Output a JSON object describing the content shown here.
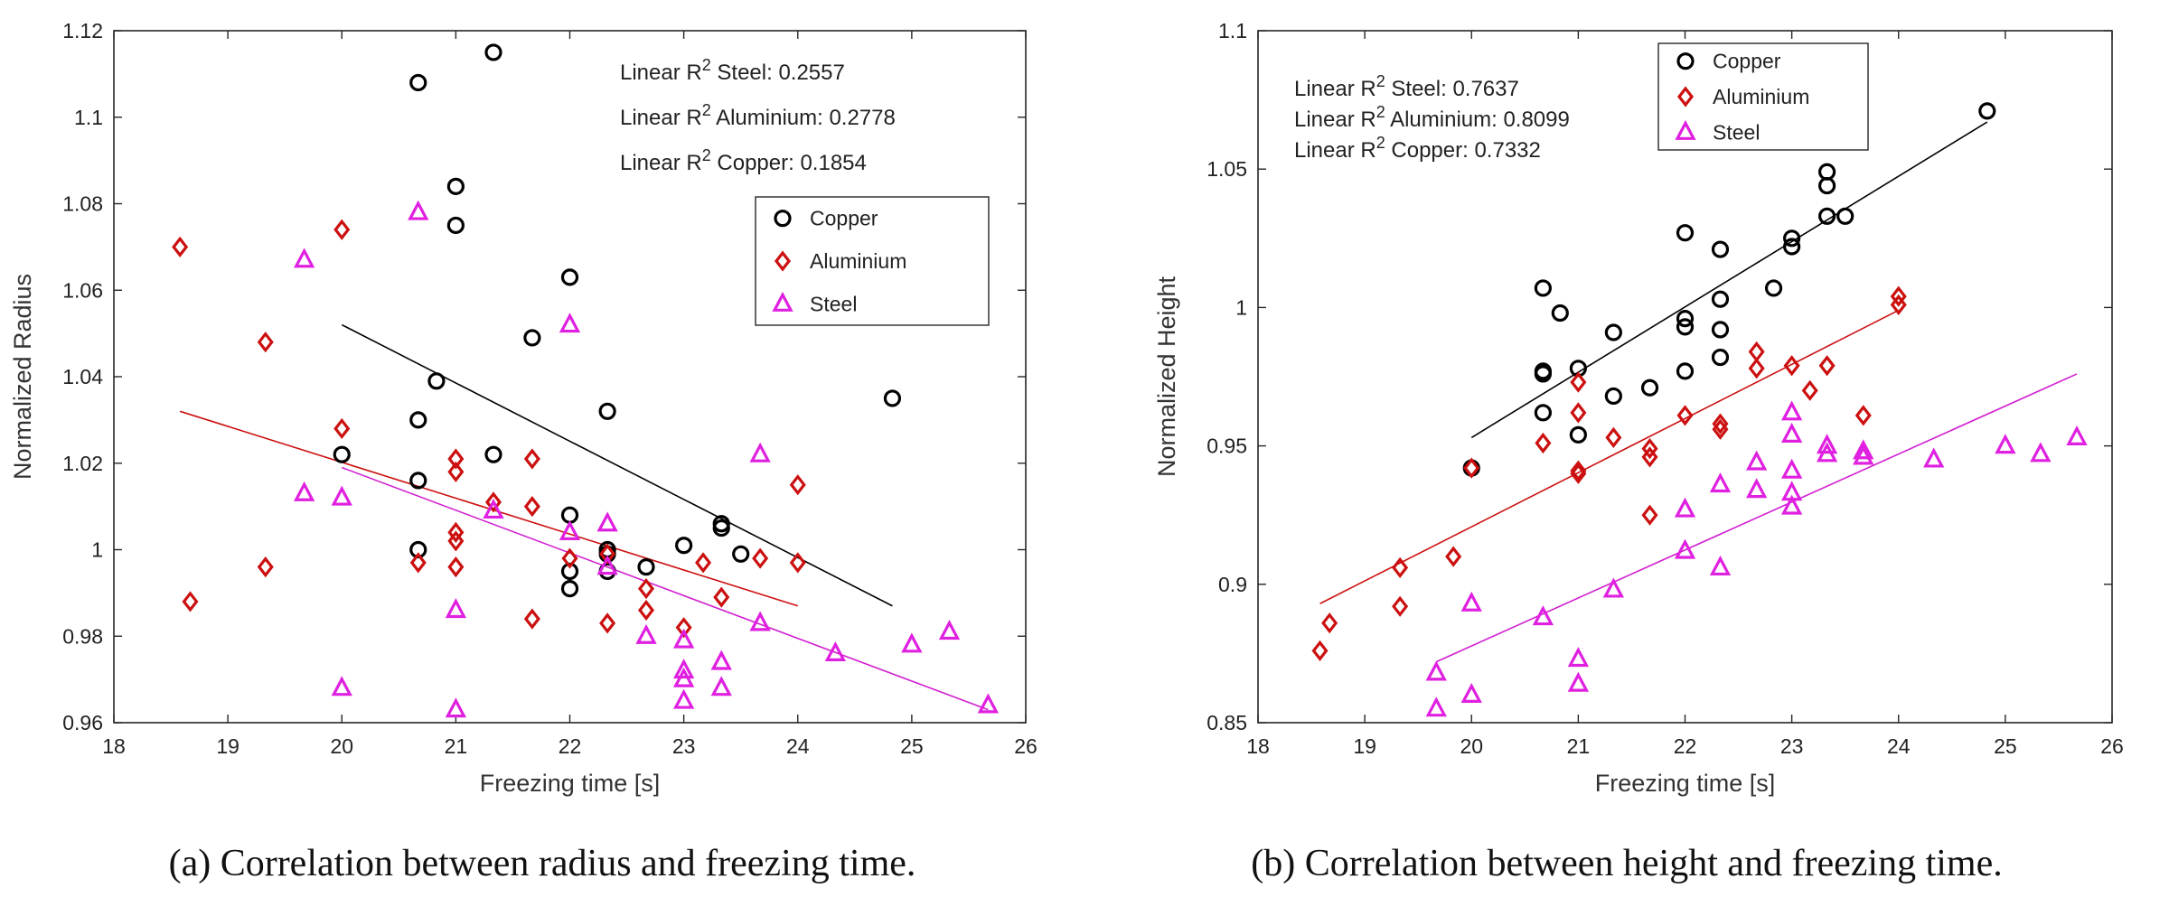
{
  "colors": {
    "Copper": "#000000",
    "Aluminium": "#cc1010",
    "Steel": "#e020e0",
    "fitCopper": "#000000",
    "fitAluminium": "#cc1010",
    "fitSteel": "#d020d0"
  },
  "chart_data": [
    {
      "id": "a",
      "type": "scatter",
      "caption": "(a) Correlation between radius and freezing time.",
      "xlabel": "Freezing time [s]",
      "ylabel": "Normalized Radius",
      "xlim": [
        18,
        26
      ],
      "ylim": [
        0.96,
        1.12
      ],
      "xticks": [
        "18",
        "19",
        "20",
        "21",
        "22",
        "23",
        "24",
        "25",
        "26"
      ],
      "yticks": [
        "0.96",
        "0.98",
        "1",
        "1.02",
        "1.04",
        "1.06",
        "1.08",
        "1.1",
        "1.12"
      ],
      "legend_position": "top-right",
      "annotations": [
        {
          "prefix": "Linear R",
          "sup": "2",
          "text": " Steel: 0.2557"
        },
        {
          "prefix": "Linear R",
          "sup": "2",
          "text": " Aluminium: 0.2778"
        },
        {
          "prefix": "Linear R",
          "sup": "2",
          "text": " Copper: 0.1854"
        }
      ],
      "series": [
        {
          "name": "Copper",
          "marker": "circle",
          "points": [
            [
              20,
              1.022
            ],
            [
              20.67,
              1.108
            ],
            [
              20.67,
              1.03
            ],
            [
              20.67,
              1.016
            ],
            [
              20.67,
              1.0
            ],
            [
              20.83,
              1.039
            ],
            [
              21,
              1.084
            ],
            [
              21,
              1.075
            ],
            [
              21.33,
              1.115
            ],
            [
              21.33,
              1.022
            ],
            [
              21.67,
              1.049
            ],
            [
              22,
              1.063
            ],
            [
              22,
              1.008
            ],
            [
              22,
              0.995
            ],
            [
              22,
              0.991
            ],
            [
              22.33,
              1.032
            ],
            [
              22.33,
              1.0
            ],
            [
              22.33,
              0.999
            ],
            [
              22.33,
              0.995
            ],
            [
              22.67,
              0.996
            ],
            [
              23,
              1.001
            ],
            [
              23.33,
              1.006
            ],
            [
              23.33,
              1.005
            ],
            [
              23.5,
              0.999
            ],
            [
              24.83,
              1.035
            ]
          ],
          "fit": [
            [
              20,
              1.052
            ],
            [
              24.83,
              0.987
            ]
          ]
        },
        {
          "name": "Aluminium",
          "marker": "diamond",
          "points": [
            [
              18.58,
              1.07
            ],
            [
              18.67,
              0.988
            ],
            [
              19.33,
              1.048
            ],
            [
              19.33,
              0.996
            ],
            [
              20,
              1.074
            ],
            [
              20,
              1.028
            ],
            [
              20.67,
              0.997
            ],
            [
              21,
              1.021
            ],
            [
              21,
              1.018
            ],
            [
              21,
              1.004
            ],
            [
              21,
              1.002
            ],
            [
              21,
              0.996
            ],
            [
              21.33,
              1.011
            ],
            [
              21.67,
              1.021
            ],
            [
              21.67,
              1.01
            ],
            [
              21.67,
              0.984
            ],
            [
              22,
              0.998
            ],
            [
              22.33,
              0.999
            ],
            [
              22.33,
              0.983
            ],
            [
              22.67,
              0.991
            ],
            [
              22.67,
              0.986
            ],
            [
              23,
              0.982
            ],
            [
              23.17,
              0.997
            ],
            [
              23.33,
              0.989
            ],
            [
              23.67,
              0.998
            ],
            [
              24,
              1.015
            ],
            [
              24,
              0.997
            ]
          ],
          "fit": [
            [
              18.58,
              1.032
            ],
            [
              24,
              0.987
            ]
          ]
        },
        {
          "name": "Steel",
          "marker": "triangle",
          "points": [
            [
              19.67,
              1.067
            ],
            [
              19.67,
              1.013
            ],
            [
              20,
              1.012
            ],
            [
              20,
              0.968
            ],
            [
              20.67,
              1.078
            ],
            [
              21,
              0.986
            ],
            [
              21,
              0.963
            ],
            [
              21.33,
              1.009
            ],
            [
              22,
              1.052
            ],
            [
              22,
              1.004
            ],
            [
              22.33,
              1.006
            ],
            [
              22.33,
              0.996
            ],
            [
              22.67,
              0.98
            ],
            [
              23,
              0.979
            ],
            [
              23,
              0.972
            ],
            [
              23,
              0.97
            ],
            [
              23,
              0.965
            ],
            [
              23.33,
              0.974
            ],
            [
              23.33,
              0.968
            ],
            [
              23.67,
              1.022
            ],
            [
              23.67,
              0.983
            ],
            [
              24.33,
              0.976
            ],
            [
              25,
              0.978
            ],
            [
              25.33,
              0.981
            ],
            [
              25.67,
              0.964
            ]
          ],
          "fit": [
            [
              20,
              1.019
            ],
            [
              25.67,
              0.963
            ]
          ]
        }
      ]
    },
    {
      "id": "b",
      "type": "scatter",
      "caption": "(b) Correlation between height and freezing time.",
      "xlabel": "Freezing time [s]",
      "ylabel": "Normalized Height",
      "xlim": [
        18,
        26
      ],
      "ylim": [
        0.85,
        1.1
      ],
      "xticks": [
        "18",
        "19",
        "20",
        "21",
        "22",
        "23",
        "24",
        "25",
        "26"
      ],
      "yticks": [
        "0.85",
        "0.9",
        "0.95",
        "1",
        "1.05",
        "1.1"
      ],
      "legend_position": "top-center",
      "annotations": [
        {
          "prefix": "Linear R",
          "sup": "2",
          "text": " Steel: 0.7637"
        },
        {
          "prefix": "Linear R",
          "sup": "2",
          "text": " Aluminium: 0.8099"
        },
        {
          "prefix": "Linear R",
          "sup": "2",
          "text": " Copper: 0.7332"
        }
      ],
      "series": [
        {
          "name": "Copper",
          "marker": "circle",
          "points": [
            [
              20,
              0.942
            ],
            [
              20.67,
              1.007
            ],
            [
              20.67,
              0.977
            ],
            [
              20.67,
              0.976
            ],
            [
              20.67,
              0.962
            ],
            [
              20.83,
              0.998
            ],
            [
              21,
              0.978
            ],
            [
              21,
              0.954
            ],
            [
              21.33,
              0.991
            ],
            [
              21.33,
              0.968
            ],
            [
              21.67,
              0.971
            ],
            [
              22,
              1.027
            ],
            [
              22,
              0.996
            ],
            [
              22,
              0.993
            ],
            [
              22,
              0.977
            ],
            [
              22.33,
              1.021
            ],
            [
              22.33,
              1.003
            ],
            [
              22.33,
              0.992
            ],
            [
              22.33,
              0.982
            ],
            [
              22.83,
              1.007
            ],
            [
              23,
              1.025
            ],
            [
              23,
              1.022
            ],
            [
              23.33,
              1.049
            ],
            [
              23.33,
              1.044
            ],
            [
              23.33,
              1.033
            ],
            [
              23.5,
              1.033
            ],
            [
              24.83,
              1.071
            ]
          ],
          "fit": [
            [
              20,
              0.953
            ],
            [
              24.83,
              1.067
            ]
          ]
        },
        {
          "name": "Aluminium",
          "marker": "diamond",
          "points": [
            [
              18.58,
              0.876
            ],
            [
              18.67,
              0.886
            ],
            [
              19.33,
              0.906
            ],
            [
              19.33,
              0.892
            ],
            [
              19.83,
              0.91
            ],
            [
              20,
              0.942
            ],
            [
              20.67,
              0.951
            ],
            [
              21,
              0.973
            ],
            [
              21,
              0.962
            ],
            [
              21,
              0.941
            ],
            [
              21,
              0.94
            ],
            [
              21.33,
              0.953
            ],
            [
              21.67,
              0.949
            ],
            [
              21.67,
              0.946
            ],
            [
              21.67,
              0.925
            ],
            [
              22,
              0.961
            ],
            [
              22.33,
              0.958
            ],
            [
              22.33,
              0.956
            ],
            [
              22.67,
              0.984
            ],
            [
              22.67,
              0.978
            ],
            [
              23,
              0.979
            ],
            [
              23.17,
              0.97
            ],
            [
              23.33,
              0.979
            ],
            [
              23.67,
              0.961
            ],
            [
              24,
              1.004
            ],
            [
              24,
              1.001
            ]
          ],
          "fit": [
            [
              18.58,
              0.893
            ],
            [
              24,
              0.999
            ]
          ]
        },
        {
          "name": "Steel",
          "marker": "triangle",
          "points": [
            [
              19.67,
              0.868
            ],
            [
              19.67,
              0.855
            ],
            [
              20,
              0.893
            ],
            [
              20,
              0.86
            ],
            [
              20.67,
              0.888
            ],
            [
              21,
              0.873
            ],
            [
              21,
              0.864
            ],
            [
              21.33,
              0.898
            ],
            [
              22,
              0.927
            ],
            [
              22,
              0.912
            ],
            [
              22.33,
              0.936
            ],
            [
              22.33,
              0.906
            ],
            [
              22.67,
              0.944
            ],
            [
              22.67,
              0.934
            ],
            [
              23,
              0.962
            ],
            [
              23,
              0.954
            ],
            [
              23,
              0.941
            ],
            [
              23,
              0.933
            ],
            [
              23,
              0.928
            ],
            [
              23.33,
              0.95
            ],
            [
              23.33,
              0.947
            ],
            [
              23.67,
              0.948
            ],
            [
              23.67,
              0.946
            ],
            [
              24.33,
              0.945
            ],
            [
              25,
              0.95
            ],
            [
              25.33,
              0.947
            ],
            [
              25.67,
              0.953
            ]
          ],
          "fit": [
            [
              19.67,
              0.872
            ],
            [
              25.67,
              0.976
            ]
          ]
        }
      ]
    }
  ]
}
